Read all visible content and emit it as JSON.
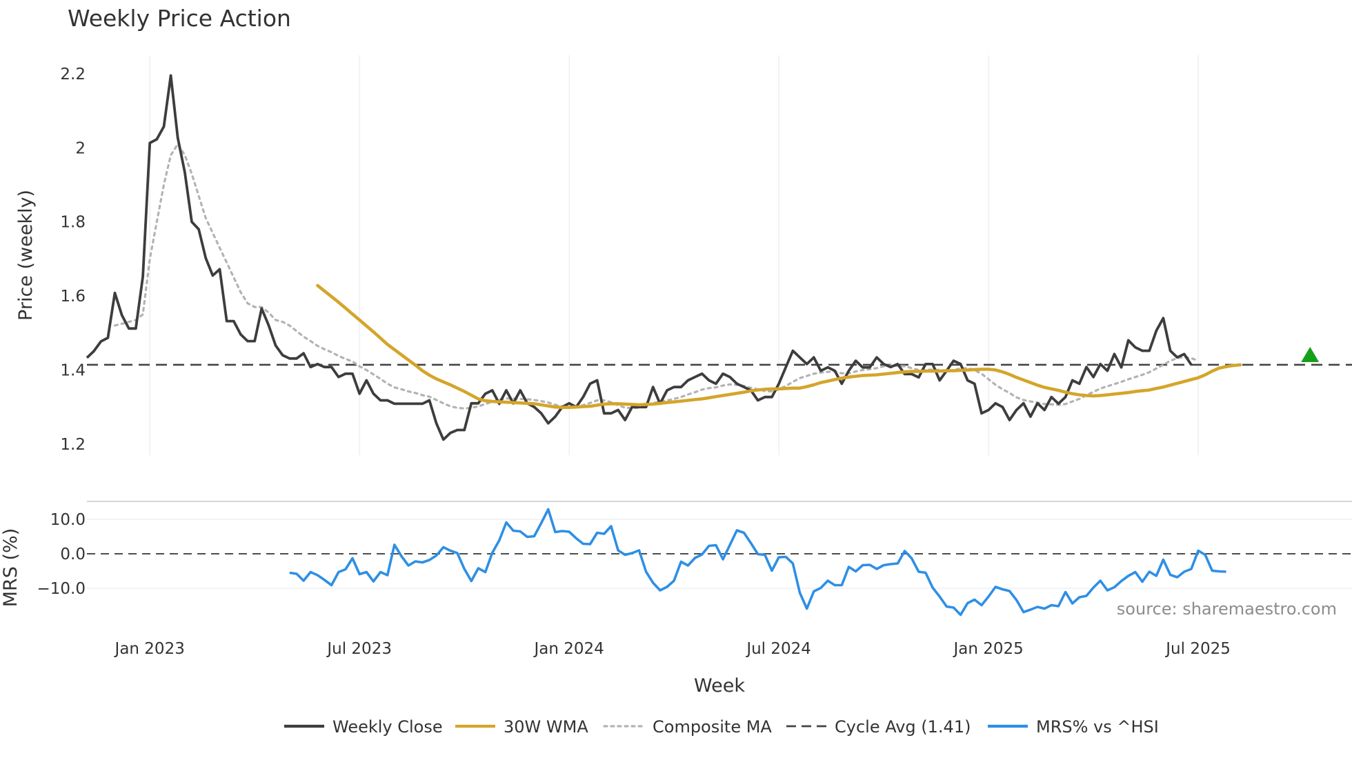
{
  "colors": {
    "close": "#3d3d3d",
    "wma": "#d4a52a",
    "composite": "#b3b3b3",
    "cycle": "#444444",
    "mrs": "#2e8fe5",
    "grid": "#e9ecf3",
    "signal": "#14a01a",
    "watermark": "#8c8c8c"
  },
  "chart_data": [
    {
      "type": "line",
      "title": "Weekly Price Action",
      "xlabel": "Week",
      "ylabel": "Price (weekly)",
      "ylim": [
        1.17,
        2.25
      ],
      "yticks": [
        1.2,
        1.4,
        1.6,
        1.8,
        2,
        2.2
      ],
      "ytick_labels": [
        "1.2",
        "1.4",
        "1.6",
        "1.8",
        "2",
        "2.2"
      ],
      "xrange": [
        0,
        181
      ],
      "xticks": [
        9,
        39,
        69,
        99,
        129,
        159
      ],
      "xtick_labels": [
        "Jan 2023",
        "Jul 2023",
        "Jan 2024",
        "Jul 2024",
        "Jan 2025",
        "Jul 2025"
      ],
      "cycle_avg": 1.414,
      "signal_marker": {
        "x": 175,
        "y": 1.44,
        "shape": "triangle-up"
      },
      "series": [
        {
          "name": "Weekly Close",
          "x_start": 0,
          "values": [
            1.433,
            1.451,
            1.477,
            1.487,
            1.608,
            1.548,
            1.512,
            1.512,
            1.652,
            2.013,
            2.023,
            2.057,
            2.195,
            2.027,
            1.934,
            1.8,
            1.78,
            1.702,
            1.655,
            1.672,
            1.532,
            1.532,
            1.496,
            1.478,
            1.478,
            1.566,
            1.521,
            1.466,
            1.44,
            1.431,
            1.431,
            1.445,
            1.408,
            1.416,
            1.408,
            1.408,
            1.381,
            1.39,
            1.39,
            1.336,
            1.372,
            1.336,
            1.318,
            1.318,
            1.309,
            1.309,
            1.309,
            1.309,
            1.309,
            1.318,
            1.256,
            1.212,
            1.23,
            1.238,
            1.238,
            1.31,
            1.31,
            1.336,
            1.345,
            1.309,
            1.345,
            1.31,
            1.345,
            1.31,
            1.3,
            1.283,
            1.256,
            1.274,
            1.3,
            1.31,
            1.3,
            1.327,
            1.363,
            1.372,
            1.283,
            1.283,
            1.292,
            1.265,
            1.3,
            1.3,
            1.3,
            1.354,
            1.309,
            1.345,
            1.354,
            1.354,
            1.372,
            1.381,
            1.39,
            1.372,
            1.363,
            1.39,
            1.381,
            1.363,
            1.354,
            1.345,
            1.318,
            1.327,
            1.327,
            1.363,
            1.408,
            1.452,
            1.434,
            1.416,
            1.434,
            1.398,
            1.407,
            1.398,
            1.363,
            1.398,
            1.425,
            1.407,
            1.407,
            1.434,
            1.416,
            1.408,
            1.416,
            1.389,
            1.389,
            1.38,
            1.416,
            1.416,
            1.372,
            1.398,
            1.425,
            1.416,
            1.372,
            1.363,
            1.283,
            1.292,
            1.31,
            1.3,
            1.265,
            1.292,
            1.31,
            1.274,
            1.31,
            1.292,
            1.327,
            1.309,
            1.327,
            1.372,
            1.363,
            1.408,
            1.381,
            1.416,
            1.398,
            1.443,
            1.407,
            1.48,
            1.461,
            1.452,
            1.452,
            1.506,
            1.54,
            1.452,
            1.434,
            1.443,
            1.414
          ]
        },
        {
          "name": "30W WMA",
          "x_start": 33,
          "values": [
            1.628,
            1.613,
            1.598,
            1.583,
            1.567,
            1.551,
            1.535,
            1.519,
            1.503,
            1.486,
            1.469,
            1.455,
            1.441,
            1.427,
            1.413,
            1.398,
            1.386,
            1.376,
            1.368,
            1.36,
            1.351,
            1.342,
            1.332,
            1.322,
            1.317,
            1.315,
            1.314,
            1.313,
            1.312,
            1.311,
            1.31,
            1.309,
            1.306,
            1.303,
            1.3,
            1.299,
            1.299,
            1.3,
            1.301,
            1.302,
            1.305,
            1.308,
            1.309,
            1.309,
            1.308,
            1.307,
            1.306,
            1.307,
            1.308,
            1.31,
            1.312,
            1.314,
            1.316,
            1.318,
            1.32,
            1.322,
            1.325,
            1.328,
            1.331,
            1.334,
            1.337,
            1.34,
            1.344,
            1.346,
            1.348,
            1.349,
            1.349,
            1.35,
            1.351,
            1.351,
            1.355,
            1.36,
            1.366,
            1.37,
            1.374,
            1.378,
            1.381,
            1.383,
            1.385,
            1.386,
            1.387,
            1.389,
            1.391,
            1.393,
            1.395,
            1.396,
            1.396,
            1.397,
            1.397,
            1.397,
            1.398,
            1.398,
            1.399,
            1.4,
            1.401,
            1.402,
            1.402,
            1.4,
            1.395,
            1.388,
            1.38,
            1.373,
            1.366,
            1.359,
            1.353,
            1.349,
            1.345,
            1.34,
            1.336,
            1.333,
            1.331,
            1.33,
            1.331,
            1.333,
            1.335,
            1.337,
            1.339,
            1.342,
            1.344,
            1.346,
            1.35,
            1.354,
            1.359,
            1.364,
            1.369,
            1.374,
            1.379,
            1.387,
            1.397,
            1.405,
            1.409,
            1.412,
            1.414
          ]
        },
        {
          "name": "Composite MA",
          "x_start": 0,
          "values": [
            null,
            null,
            null,
            null,
            1.52,
            1.525,
            1.53,
            1.535,
            1.55,
            1.7,
            1.8,
            1.9,
            1.98,
            2.01,
            1.98,
            1.93,
            1.87,
            1.81,
            1.77,
            1.73,
            1.69,
            1.65,
            1.61,
            1.58,
            1.57,
            1.57,
            1.555,
            1.535,
            1.53,
            1.52,
            1.505,
            1.49,
            1.478,
            1.465,
            1.456,
            1.448,
            1.438,
            1.43,
            1.423,
            1.41,
            1.4,
            1.388,
            1.376,
            1.363,
            1.353,
            1.348,
            1.342,
            1.338,
            1.332,
            1.328,
            1.319,
            1.31,
            1.302,
            1.298,
            1.296,
            1.298,
            1.302,
            1.308,
            1.314,
            1.32,
            1.323,
            1.323,
            1.322,
            1.321,
            1.319,
            1.316,
            1.312,
            1.306,
            1.302,
            1.3,
            1.3,
            1.305,
            1.311,
            1.318,
            1.318,
            1.313,
            1.305,
            1.298,
            1.297,
            1.298,
            1.305,
            1.311,
            1.314,
            1.318,
            1.322,
            1.327,
            1.334,
            1.34,
            1.347,
            1.351,
            1.353,
            1.358,
            1.361,
            1.36,
            1.357,
            1.352,
            1.348,
            1.343,
            1.342,
            1.348,
            1.357,
            1.368,
            1.378,
            1.384,
            1.39,
            1.393,
            1.395,
            1.396,
            1.391,
            1.391,
            1.396,
            1.4,
            1.402,
            1.405,
            1.41,
            1.412,
            1.411,
            1.41,
            1.405,
            1.4,
            1.4,
            1.401,
            1.4,
            1.398,
            1.4,
            1.404,
            1.405,
            1.4,
            1.39,
            1.375,
            1.36,
            1.348,
            1.338,
            1.326,
            1.319,
            1.315,
            1.312,
            1.308,
            1.307,
            1.306,
            1.308,
            1.315,
            1.322,
            1.332,
            1.341,
            1.35,
            1.356,
            1.362,
            1.368,
            1.375,
            1.381,
            1.387,
            1.394,
            1.404,
            1.414,
            1.425,
            1.432,
            1.435,
            1.432,
            1.425
          ]
        }
      ]
    },
    {
      "type": "line",
      "ylabel": "MRS (%)",
      "ylim": [
        -20,
        15
      ],
      "yticks": [
        10,
        0,
        -10
      ],
      "ytick_labels": [
        "10.0",
        "0.0",
        "−10.0"
      ],
      "zero_line": 0,
      "series": [
        {
          "name": "MRS% vs ^HSI",
          "x_start": 29,
          "values": [
            -5.5,
            -5.8,
            -7.8,
            -5.3,
            -6.2,
            -7.6,
            -9.1,
            -5.3,
            -4.5,
            -1.3,
            -5.9,
            -5.3,
            -8.0,
            -5.3,
            -6.2,
            2.6,
            -0.7,
            -3.4,
            -2.2,
            -2.5,
            -1.8,
            -0.5,
            1.9,
            0.9,
            0.2,
            -4.4,
            -7.9,
            -4.2,
            -5.3,
            0.3,
            3.9,
            9.1,
            6.7,
            6.5,
            4.9,
            5.1,
            8.9,
            12.9,
            6.3,
            6.6,
            6.4,
            4.5,
            2.9,
            2.8,
            6.1,
            5.8,
            8.0,
            1.0,
            -0.3,
            0.2,
            1.0,
            -5.2,
            -8.4,
            -10.6,
            -9.6,
            -7.8,
            -2.3,
            -3.4,
            -1.2,
            -0.2,
            2.3,
            2.5,
            -1.6,
            2.6,
            6.8,
            6.1,
            3.1,
            -0.1,
            -0.3,
            -4.9,
            -1.0,
            -0.9,
            -2.8,
            -11.3,
            -15.9,
            -10.9,
            -9.9,
            -7.8,
            -9.1,
            -9.1,
            -3.8,
            -5.1,
            -3.3,
            -3.2,
            -4.4,
            -3.3,
            -3.0,
            -2.8,
            0.8,
            -1.3,
            -5.2,
            -5.5,
            -9.8,
            -12.4,
            -15.3,
            -15.6,
            -17.7,
            -14.3,
            -13.3,
            -14.9,
            -12.4,
            -9.6,
            -10.3,
            -10.8,
            -13.4,
            -16.9,
            -16.2,
            -15.4,
            -15.9,
            -14.9,
            -15.2,
            -11.1,
            -14.4,
            -12.6,
            -12.2,
            -9.8,
            -7.8,
            -10.6,
            -9.7,
            -7.9,
            -6.4,
            -5.3,
            -8.1,
            -5.2,
            -6.4,
            -1.7,
            -6.1,
            -6.8,
            -5.2,
            -4.4,
            0.9,
            -0.3,
            -4.9,
            -5.1,
            -5.2
          ]
        }
      ]
    }
  ],
  "legend": [
    {
      "label": "Weekly Close",
      "style": "solid",
      "color_key": "close"
    },
    {
      "label": "30W WMA",
      "style": "solid",
      "color_key": "wma"
    },
    {
      "label": "Composite MA",
      "style": "dotted",
      "color_key": "composite"
    },
    {
      "label": "Cycle Avg (1.41)",
      "style": "dashed",
      "color_key": "cycle"
    },
    {
      "label": "MRS% vs ^HSI",
      "style": "solid",
      "color_key": "mrs"
    }
  ],
  "watermark": "source: sharemaestro.com"
}
